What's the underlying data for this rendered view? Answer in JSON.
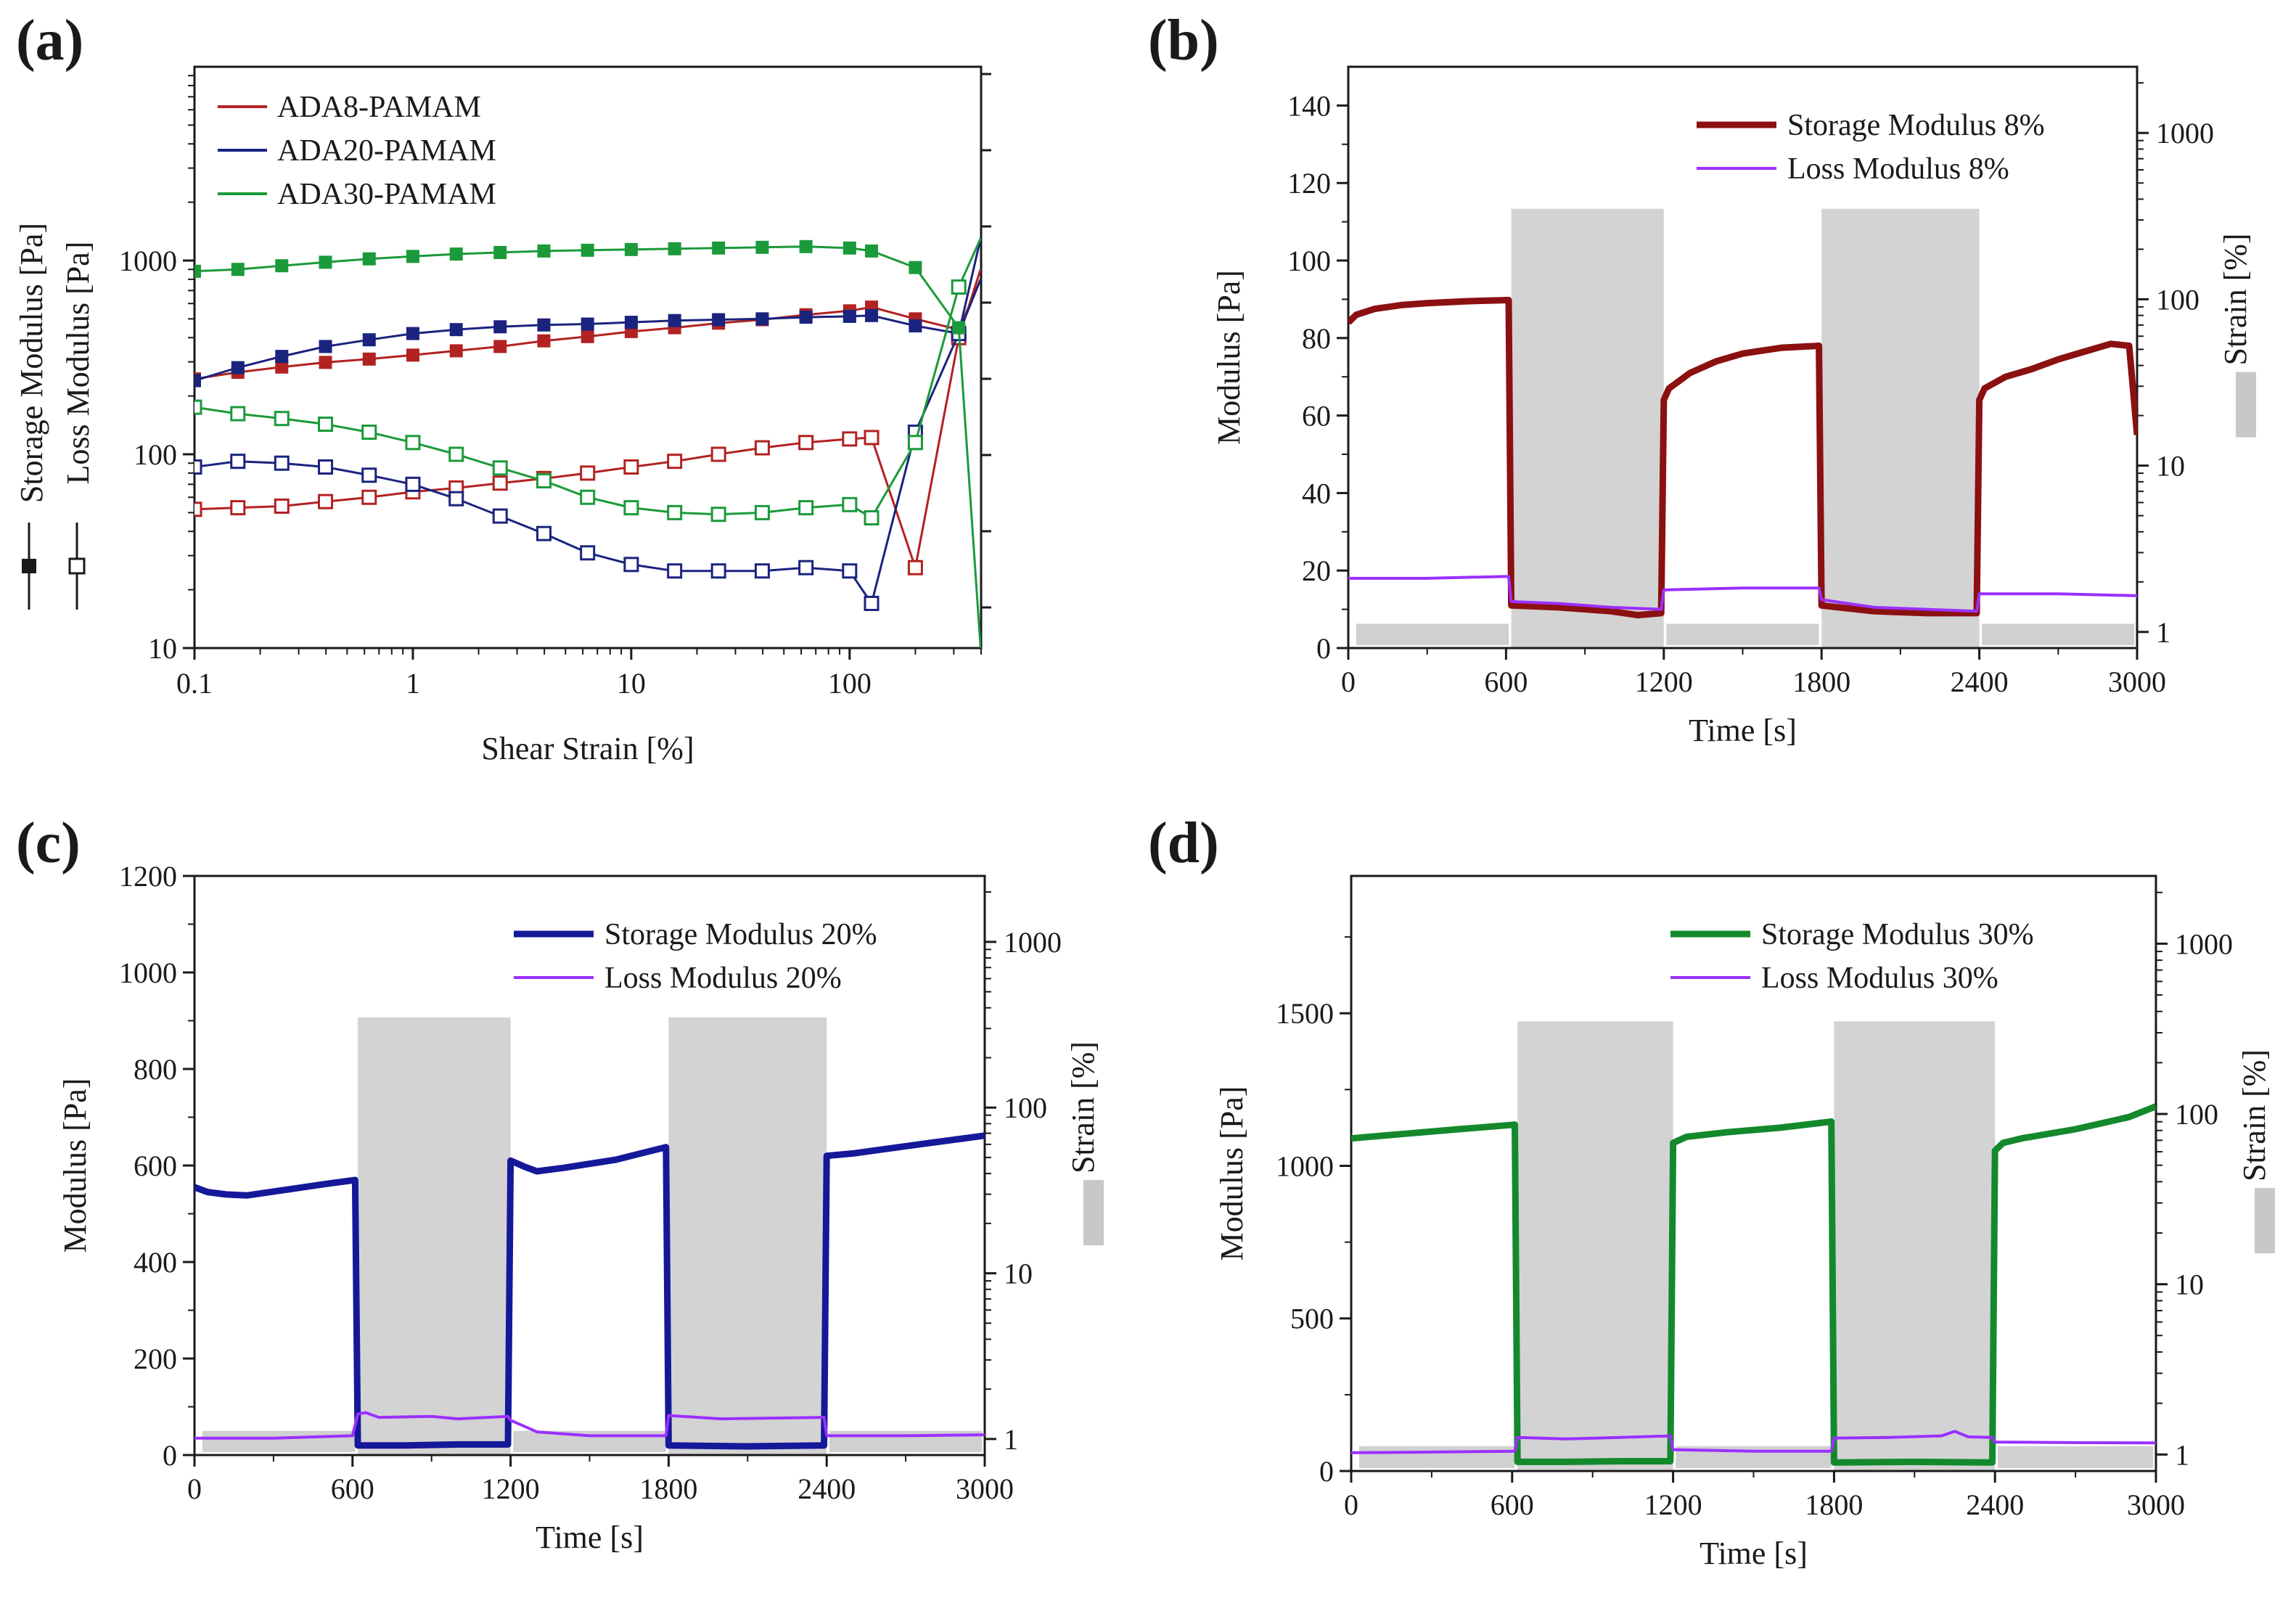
{
  "chart_data": [
    {
      "id": "a",
      "panel_label": "(a)",
      "type": "line",
      "xscale": "log",
      "yscale": "log",
      "xlabel": "Shear Strain [%]",
      "ylabel_storage": "Storage Modulus [Pa]",
      "ylabel_loss": "Loss Modulus [Pa]",
      "xlim": [
        0.1,
        400
      ],
      "ylim": [
        10,
        10000
      ],
      "x_ticks": [
        0.1,
        1,
        10,
        100
      ],
      "x_tick_labels": [
        "0.1",
        "1",
        "10",
        "100"
      ],
      "y_ticks": [
        10,
        100,
        1000
      ],
      "y_tick_labels": [
        "10",
        "100",
        "1000"
      ],
      "legend": [
        "ADA8-PAMAM",
        "ADA20-PAMAM",
        "ADA30-PAMAM"
      ],
      "x": [
        0.1,
        0.158,
        0.251,
        0.398,
        0.631,
        1,
        1.58,
        2.51,
        3.98,
        6.31,
        10,
        15.8,
        25.1,
        39.8,
        63.1,
        100,
        126,
        200,
        316,
        398
      ],
      "series": [
        {
          "name": "ADA8-PAMAM",
          "color": "#b22222",
          "modulus": "storage",
          "values": [
            245,
            265,
            282,
            298,
            310,
            325,
            342,
            360,
            385,
            405,
            430,
            450,
            475,
            495,
            525,
            550,
            575,
            500,
            440,
            800
          ]
        },
        {
          "name": "ADA8-PAMAM",
          "color": "#b22222",
          "modulus": "loss",
          "values": [
            52,
            53,
            54,
            57,
            60,
            64,
            67,
            71,
            75,
            80,
            86,
            92,
            100,
            108,
            115,
            120,
            122,
            26,
            400,
            900
          ]
        },
        {
          "name": "ADA20-PAMAM",
          "color": "#1a237e",
          "modulus": "storage",
          "values": [
            240,
            280,
            320,
            360,
            390,
            420,
            440,
            455,
            465,
            470,
            480,
            490,
            495,
            500,
            510,
            515,
            520,
            460,
            420,
            800
          ]
        },
        {
          "name": "ADA20-PAMAM",
          "color": "#1a237e",
          "modulus": "loss",
          "values": [
            86,
            92,
            90,
            86,
            78,
            70,
            59,
            48,
            39,
            31,
            27,
            25,
            25,
            25,
            26,
            25,
            17,
            130,
            420,
            1300
          ]
        },
        {
          "name": "ADA30-PAMAM",
          "color": "#1a9a3a",
          "modulus": "storage",
          "values": [
            880,
            900,
            940,
            980,
            1020,
            1050,
            1080,
            1100,
            1120,
            1130,
            1140,
            1150,
            1160,
            1170,
            1180,
            1160,
            1120,
            920,
            450,
            10
          ]
        },
        {
          "name": "ADA30-PAMAM",
          "color": "#1a9a3a",
          "modulus": "loss",
          "values": [
            175,
            162,
            153,
            143,
            130,
            115,
            100,
            85,
            73,
            60,
            53,
            50,
            49,
            50,
            53,
            55,
            47,
            115,
            730,
            1300
          ]
        }
      ]
    },
    {
      "id": "b",
      "panel_label": "(b)",
      "type": "line",
      "xlabel": "Time [s]",
      "ylabel": "Modulus [Pa]",
      "y2label": "Strain [%]",
      "xlim": [
        0,
        3000
      ],
      "ylim": [
        0,
        150
      ],
      "y2lim": [
        0.8,
        2500
      ],
      "x_ticks": [
        0,
        600,
        1200,
        1800,
        2400,
        3000
      ],
      "x_tick_labels": [
        "0",
        "600",
        "1200",
        "1800",
        "2400",
        "3000"
      ],
      "y_ticks": [
        0,
        20,
        40,
        60,
        80,
        100,
        120,
        140
      ],
      "y_tick_labels": [
        "0",
        "20",
        "40",
        "60",
        "80",
        "100",
        "120",
        "140"
      ],
      "y2_ticks": [
        1,
        10,
        100,
        1000
      ],
      "y2_tick_labels": [
        "1",
        "10",
        "100",
        "1000"
      ],
      "strain_blocks": [
        {
          "start": 620,
          "end": 1200,
          "strain": 350
        },
        {
          "start": 1800,
          "end": 2400,
          "strain": 350
        }
      ],
      "strain_baseline": 1,
      "legend": [
        "Storage Modulus 8%",
        "Loss Modulus 8%"
      ],
      "series": [
        {
          "name": "Storage Modulus 8%",
          "color": "#8b1010",
          "width": 9,
          "points": [
            [
              0,
              84
            ],
            [
              30,
              86
            ],
            [
              100,
              87.5
            ],
            [
              200,
              88.5
            ],
            [
              300,
              89
            ],
            [
              450,
              89.5
            ],
            [
              610,
              89.8
            ],
            [
              620,
              11
            ],
            [
              800,
              10.5
            ],
            [
              1000,
              9.5
            ],
            [
              1100,
              8.5
            ],
            [
              1190,
              9
            ],
            [
              1200,
              64
            ],
            [
              1220,
              67
            ],
            [
              1300,
              71
            ],
            [
              1400,
              74
            ],
            [
              1500,
              76
            ],
            [
              1650,
              77.5
            ],
            [
              1790,
              78
            ],
            [
              1800,
              11
            ],
            [
              2000,
              9.5
            ],
            [
              2200,
              9
            ],
            [
              2390,
              9
            ],
            [
              2400,
              64
            ],
            [
              2420,
              67
            ],
            [
              2500,
              70
            ],
            [
              2600,
              72
            ],
            [
              2700,
              74.5
            ],
            [
              2800,
              76.5
            ],
            [
              2900,
              78.5
            ],
            [
              2970,
              78
            ],
            [
              3000,
              55
            ]
          ]
        },
        {
          "name": "Loss Modulus 8%",
          "color": "#9b30ff",
          "width": 4,
          "points": [
            [
              0,
              18
            ],
            [
              300,
              18
            ],
            [
              610,
              18.5
            ],
            [
              620,
              12
            ],
            [
              800,
              11.5
            ],
            [
              1000,
              10.5
            ],
            [
              1190,
              10
            ],
            [
              1200,
              15
            ],
            [
              1500,
              15.5
            ],
            [
              1790,
              15.5
            ],
            [
              1800,
              12.5
            ],
            [
              2000,
              10.5
            ],
            [
              2200,
              10
            ],
            [
              2390,
              9.5
            ],
            [
              2400,
              14
            ],
            [
              2700,
              14
            ],
            [
              3000,
              13.5
            ]
          ]
        }
      ]
    },
    {
      "id": "c",
      "panel_label": "(c)",
      "type": "line",
      "xlabel": "Time [s]",
      "ylabel": "Modulus [Pa]",
      "y2label": "Strain [%]",
      "xlim": [
        0,
        3000
      ],
      "ylim": [
        0,
        1200
      ],
      "y2lim": [
        0.8,
        2500
      ],
      "x_ticks": [
        0,
        600,
        1200,
        1800,
        2400,
        3000
      ],
      "x_tick_labels": [
        "0",
        "600",
        "1200",
        "1800",
        "2400",
        "3000"
      ],
      "y_ticks": [
        0,
        200,
        400,
        600,
        800,
        1000,
        1200
      ],
      "y_tick_labels": [
        "0",
        "200",
        "400",
        "600",
        "800",
        "1000",
        "1200"
      ],
      "y2_ticks": [
        1,
        10,
        100,
        1000
      ],
      "y2_tick_labels": [
        "1",
        "10",
        "100",
        "1000"
      ],
      "strain_blocks": [
        {
          "start": 620,
          "end": 1200,
          "strain": 350
        },
        {
          "start": 1800,
          "end": 2400,
          "strain": 350
        }
      ],
      "strain_baseline": 1,
      "legend": [
        "Storage Modulus 20%",
        "Loss Modulus 20%"
      ],
      "series": [
        {
          "name": "Storage Modulus 20%",
          "color": "#16189a",
          "width": 9,
          "points": [
            [
              0,
              555
            ],
            [
              50,
              545
            ],
            [
              120,
              540
            ],
            [
              200,
              538
            ],
            [
              350,
              550
            ],
            [
              500,
              562
            ],
            [
              610,
              570
            ],
            [
              620,
              20
            ],
            [
              800,
              20
            ],
            [
              1000,
              22
            ],
            [
              1190,
              22
            ],
            [
              1200,
              610
            ],
            [
              1250,
              598
            ],
            [
              1300,
              588
            ],
            [
              1400,
              595
            ],
            [
              1600,
              612
            ],
            [
              1790,
              638
            ],
            [
              1800,
              20
            ],
            [
              2100,
              18
            ],
            [
              2390,
              20
            ],
            [
              2400,
              620
            ],
            [
              2500,
              625
            ],
            [
              2700,
              640
            ],
            [
              3000,
              662
            ]
          ]
        },
        {
          "name": "Loss Modulus 20%",
          "color": "#9b30ff",
          "width": 4,
          "points": [
            [
              0,
              35
            ],
            [
              300,
              35
            ],
            [
              600,
              40
            ],
            [
              620,
              85
            ],
            [
              650,
              88
            ],
            [
              700,
              78
            ],
            [
              900,
              80
            ],
            [
              1000,
              75
            ],
            [
              1190,
              80
            ],
            [
              1200,
              72
            ],
            [
              1300,
              48
            ],
            [
              1500,
              40
            ],
            [
              1790,
              40
            ],
            [
              1800,
              82
            ],
            [
              2000,
              75
            ],
            [
              2390,
              78
            ],
            [
              2400,
              40
            ],
            [
              2700,
              40
            ],
            [
              3000,
              42
            ]
          ]
        }
      ]
    },
    {
      "id": "d",
      "panel_label": "(d)",
      "type": "line",
      "xlabel": "Time [s]",
      "ylabel": "Modulus [Pa]",
      "y2label": "Strain [%]",
      "xlim": [
        0,
        3000
      ],
      "ylim": [
        0,
        1950
      ],
      "y2lim": [
        0.8,
        2500
      ],
      "x_ticks": [
        0,
        600,
        1200,
        1800,
        2400,
        3000
      ],
      "x_tick_labels": [
        "0",
        "600",
        "1200",
        "1800",
        "2400",
        "3000"
      ],
      "y_ticks": [
        0,
        500,
        1000,
        1500
      ],
      "y_tick_labels": [
        "0",
        "500",
        "1000",
        "1500"
      ],
      "y2_ticks": [
        1,
        10,
        100,
        1000
      ],
      "y2_tick_labels": [
        "1",
        "10",
        "100",
        "1000"
      ],
      "strain_blocks": [
        {
          "start": 620,
          "end": 1200,
          "strain": 350
        },
        {
          "start": 1800,
          "end": 2400,
          "strain": 350
        }
      ],
      "strain_baseline": 1,
      "legend": [
        "Storage Modulus 30%",
        "Loss Modulus 30%"
      ],
      "series": [
        {
          "name": "Storage Modulus 30%",
          "color": "#14892c",
          "width": 9,
          "points": [
            [
              0,
              1090
            ],
            [
              200,
              1105
            ],
            [
              400,
              1120
            ],
            [
              610,
              1135
            ],
            [
              620,
              30
            ],
            [
              800,
              30
            ],
            [
              1000,
              32
            ],
            [
              1190,
              32
            ],
            [
              1200,
              1075
            ],
            [
              1250,
              1095
            ],
            [
              1400,
              1110
            ],
            [
              1600,
              1125
            ],
            [
              1790,
              1145
            ],
            [
              1800,
              28
            ],
            [
              2100,
              30
            ],
            [
              2390,
              28
            ],
            [
              2400,
              1050
            ],
            [
              2430,
              1075
            ],
            [
              2500,
              1090
            ],
            [
              2700,
              1120
            ],
            [
              2900,
              1160
            ],
            [
              3000,
              1195
            ]
          ]
        },
        {
          "name": "Loss Modulus 30%",
          "color": "#9b30ff",
          "width": 4,
          "points": [
            [
              0,
              60
            ],
            [
              300,
              62
            ],
            [
              610,
              65
            ],
            [
              620,
              110
            ],
            [
              800,
              105
            ],
            [
              1000,
              110
            ],
            [
              1190,
              115
            ],
            [
              1200,
              70
            ],
            [
              1500,
              65
            ],
            [
              1790,
              65
            ],
            [
              1800,
              108
            ],
            [
              2000,
              110
            ],
            [
              2200,
              115
            ],
            [
              2250,
              130
            ],
            [
              2300,
              112
            ],
            [
              2390,
              110
            ],
            [
              2400,
              95
            ],
            [
              2700,
              93
            ],
            [
              3000,
              92
            ]
          ]
        }
      ]
    }
  ]
}
